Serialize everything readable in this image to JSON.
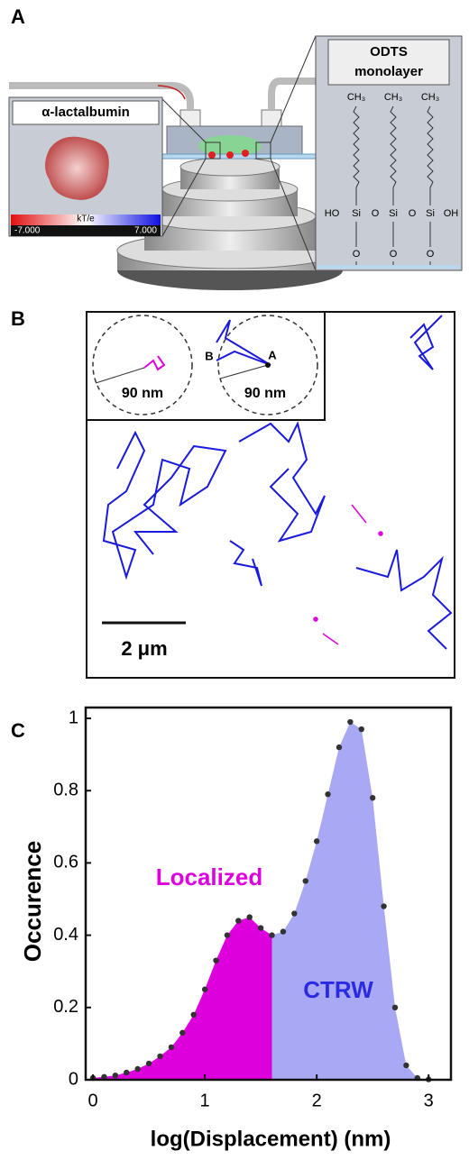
{
  "panel_a": {
    "label": "A",
    "protein_title": "α-lactalbumin",
    "colorbar_unit": "kT/e",
    "colorbar_min": "-7.000",
    "colorbar_max": "7.000",
    "monolayer_title": [
      "ODTS",
      "monolayer"
    ],
    "chain_ends": [
      "CH₃",
      "CH₃",
      "CH₃"
    ],
    "backbone": [
      "HO",
      "Si",
      "O",
      "Si",
      "O",
      "Si",
      "OH"
    ],
    "oxygens": [
      "O",
      "O",
      "O"
    ]
  },
  "panel_b": {
    "label": "B",
    "inset_radius_labels": [
      "90 nm",
      "90 nm"
    ],
    "point_labels": [
      "A",
      "B"
    ],
    "scale_bar": "2 μm"
  },
  "chart_data": {
    "type": "area",
    "label": "C",
    "xlabel": "log(Displacement) (nm)",
    "ylabel": "Occurence",
    "x": [
      0,
      0.1,
      0.2,
      0.3,
      0.4,
      0.5,
      0.6,
      0.7,
      0.8,
      0.9,
      1.0,
      1.1,
      1.2,
      1.3,
      1.4,
      1.5,
      1.6,
      1.7,
      1.8,
      1.9,
      2.0,
      2.1,
      2.2,
      2.3,
      2.4,
      2.5,
      2.6,
      2.7,
      2.8,
      2.9,
      3.0
    ],
    "values": [
      0.005,
      0.008,
      0.012,
      0.02,
      0.03,
      0.045,
      0.065,
      0.09,
      0.13,
      0.18,
      0.25,
      0.33,
      0.4,
      0.44,
      0.45,
      0.42,
      0.4,
      0.41,
      0.46,
      0.55,
      0.66,
      0.79,
      0.92,
      0.99,
      0.97,
      0.78,
      0.48,
      0.2,
      0.04,
      0.005,
      0.001
    ],
    "dot_color": "#333333",
    "regions": [
      {
        "label": "Localized",
        "color": "#dd00dd",
        "from": 0,
        "to": 1.6
      },
      {
        "label": "CTRW",
        "color": "#a8a8f5",
        "from": 1.6,
        "to": 3.0
      }
    ],
    "xlim": [
      -0.065,
      3.2
    ],
    "ylim": [
      0,
      1.03
    ],
    "xticks": [
      0,
      1,
      2,
      3
    ],
    "yticks": [
      0,
      0.2,
      0.4,
      0.6,
      0.8,
      1
    ]
  }
}
